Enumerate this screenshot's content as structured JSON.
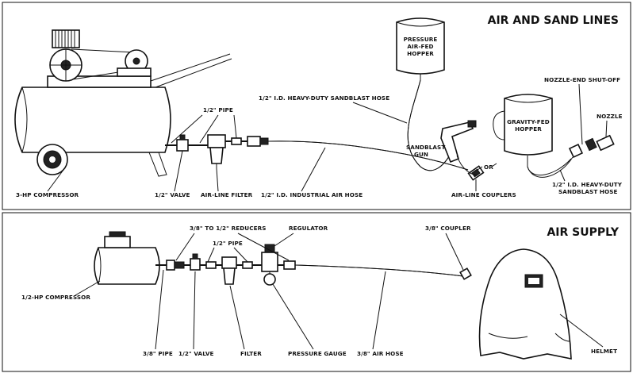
{
  "top_panel": {
    "title": "AIR AND SAND LINES",
    "labels": {
      "compressor": "3-HP COMPRESSOR",
      "valve": "1/2\" VALVE",
      "pipe": "1/2\" PIPE",
      "filter": "AIR-LINE FILTER",
      "industrial_hose": "1/2\" I.D. INDUSTRIAL AIR HOSE",
      "sandblast_hose": "1/2\" I.D. HEAVY-DUTY SANDBLAST HOSE",
      "pressure_hopper_1": "PRESSURE",
      "pressure_hopper_2": "AIR-FED",
      "pressure_hopper_3": "HOPPER",
      "gun_1": "SANDBLAST",
      "gun_2": "GUN",
      "or": "OR",
      "couplers": "AIR-LINE COUPLERS",
      "gravity_hopper_1": "GRAVITY-FED",
      "gravity_hopper_2": "HOPPER",
      "shutoff": "NOZZLE-END SHUT-OFF",
      "nozzle": "NOZZLE",
      "hd_hose_1": "1/2\" I.D. HEAVY-DUTY",
      "hd_hose_2": "SANDBLAST HOSE"
    }
  },
  "bottom_panel": {
    "title": "AIR SUPPLY",
    "labels": {
      "compressor": "1/2-HP COMPRESSOR",
      "reducers": "3/8\" TO 1/2\" REDUCERS",
      "pipe": "1/2\" PIPE",
      "regulator": "REGULATOR",
      "coupler": "3/8\" COUPLER",
      "pipe38": "3/8\" PIPE",
      "valve": "1/2\" VALVE",
      "filter": "FILTER",
      "gauge": "PRESSURE GAUGE",
      "air_hose": "3/8\" AIR HOSE",
      "helmet": "HELMET"
    }
  }
}
